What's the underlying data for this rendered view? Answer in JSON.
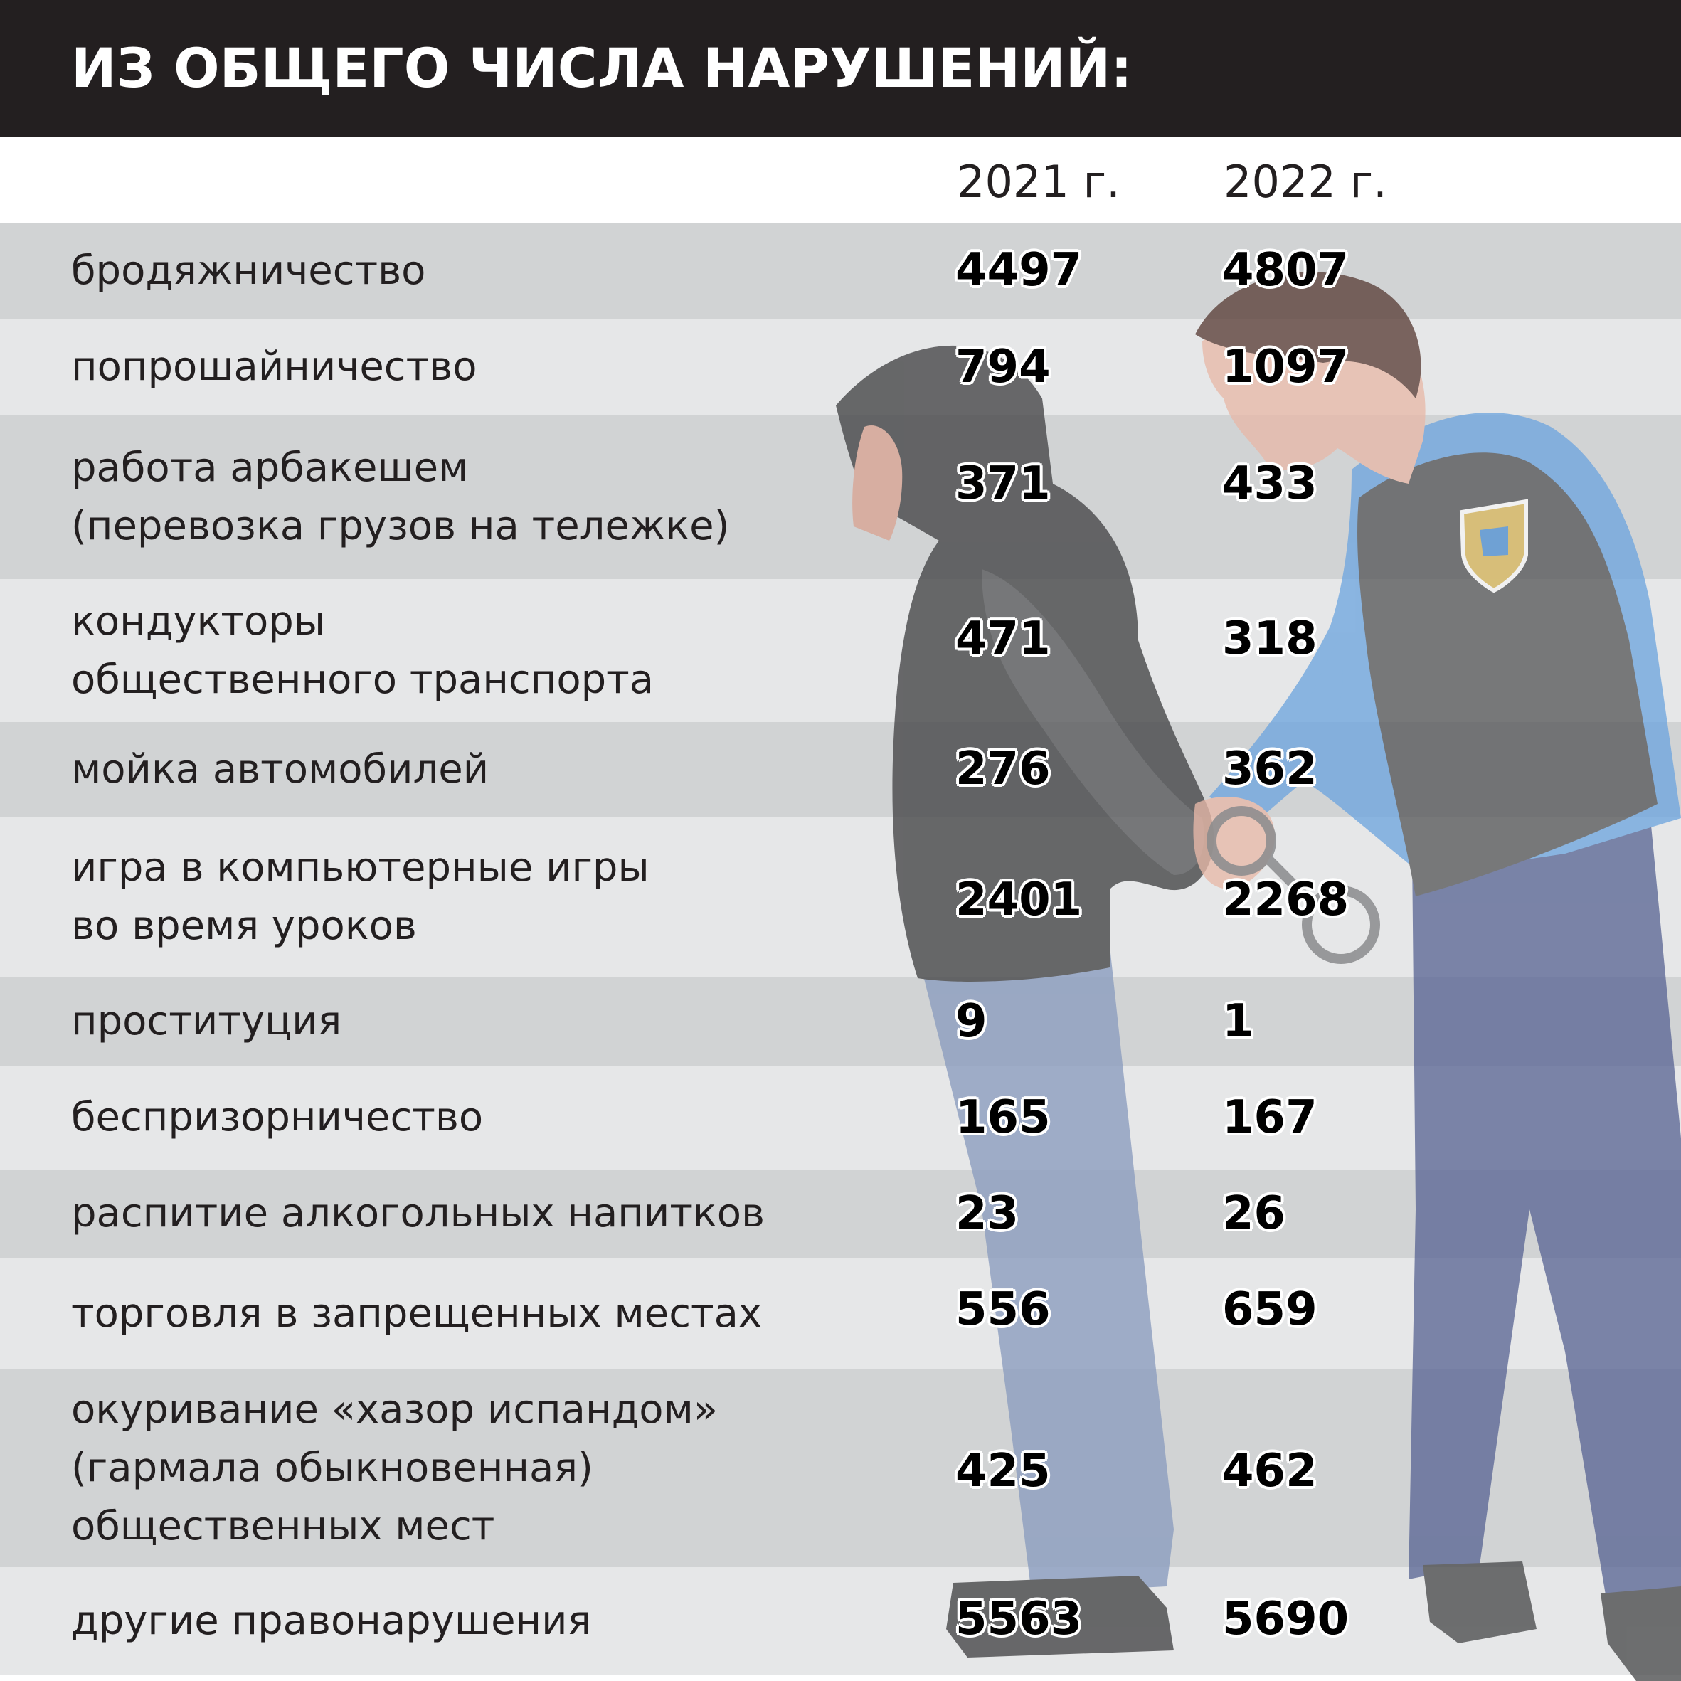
{
  "header": {
    "title": "ИЗ ОБЩЕГО ЧИСЛА НАРУШЕНИЙ:"
  },
  "chart_data": {
    "type": "table",
    "title": "ИЗ ОБЩЕГО ЧИСЛА НАРУШЕНИЙ:",
    "columns": [
      "2021 г.",
      "2022 г."
    ],
    "rows": [
      {
        "label": [
          "бродяжничество"
        ],
        "v2021": "4497",
        "v2022": "4807"
      },
      {
        "label": [
          "попрошайничество"
        ],
        "v2021": "794",
        "v2022": "1097"
      },
      {
        "label": [
          "работа арбакешем",
          "(перевозка грузов на тележке)"
        ],
        "v2021": "371",
        "v2022": "433"
      },
      {
        "label": [
          "кондукторы",
          "общественного транспорта"
        ],
        "v2021": "471",
        "v2022": "318"
      },
      {
        "label": [
          "мойка автомобилей"
        ],
        "v2021": "276",
        "v2022": "362"
      },
      {
        "label": [
          "игра в компьютерные игры",
          "во время уроков"
        ],
        "v2021": "2401",
        "v2022": "2268"
      },
      {
        "label": [
          "проституция"
        ],
        "v2021": "9",
        "v2022": "1"
      },
      {
        "label": [
          "беспризорничество"
        ],
        "v2021": "165",
        "v2022": "167"
      },
      {
        "label": [
          "распитие алкогольных напитков"
        ],
        "v2021": "23",
        "v2022": "26"
      },
      {
        "label": [
          "торговля в запрещенных местах"
        ],
        "v2021": "556",
        "v2022": "659"
      },
      {
        "label": [
          "окуривание «хазор испандом»",
          "(гармала обыкновенная)",
          "общественных мест"
        ],
        "v2021": "425",
        "v2022": "462"
      },
      {
        "label": [
          "другие правонарушения"
        ],
        "v2021": "5563",
        "v2022": "5690"
      }
    ]
  },
  "colors": {
    "header_bg": "#231f20",
    "row_dark": "#d1d3d4",
    "row_light": "#e6e7e8",
    "officer_shirt": "#6fa6df",
    "officer_vest": "#58595b",
    "officer_pants": "#5b6795",
    "offender_hoodie": "#4a4b4d",
    "offender_jeans": "#8d9fc0",
    "skin": "#e8b9a9"
  },
  "illustration": {
    "subjects": [
      "hooded-offender-figure",
      "police-officer-figure",
      "handcuffs-icon",
      "shield-badge-icon"
    ]
  }
}
